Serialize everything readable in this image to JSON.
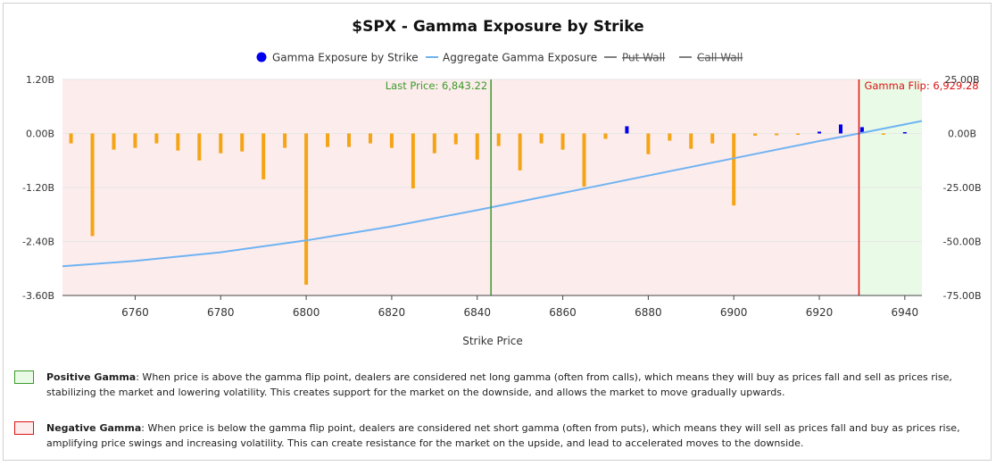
{
  "chart_data": {
    "type": "bar",
    "title": "$SPX - Gamma Exposure by Strike",
    "xlabel": "Strike Price",
    "ylabel_left": "",
    "ylabel_right": "",
    "xlim": [
      6743,
      6944
    ],
    "ylim_left": [
      -3.6,
      1.2
    ],
    "ylim_right": [
      -75,
      25
    ],
    "x_ticks": [
      6760,
      6780,
      6800,
      6820,
      6840,
      6860,
      6880,
      6900,
      6920,
      6940
    ],
    "y_ticks_left": [
      "1.20B",
      "0.00B",
      "-1.20B",
      "-2.40B",
      "-3.60B"
    ],
    "y_ticks_left_values": [
      1.2,
      0,
      -1.2,
      -2.4,
      -3.6
    ],
    "y_ticks_right": [
      "25.00B",
      "0.00B",
      "-25.00B",
      "-50.00B",
      "-75.00B"
    ],
    "y_ticks_right_values": [
      25,
      0,
      -25,
      -50,
      -75
    ],
    "legend": {
      "position": "top-center",
      "items": [
        {
          "label": "Gamma Exposure by Strike",
          "marker": "circle",
          "color": "#0000ee",
          "active": true
        },
        {
          "label": "Aggregate Gamma Exposure",
          "marker": "line",
          "color": "#6fb3f2",
          "active": true
        },
        {
          "label": "Put Wall",
          "marker": "line",
          "color": "#555555",
          "active": false
        },
        {
          "label": "Call Wall",
          "marker": "line",
          "color": "#555555",
          "active": false
        }
      ]
    },
    "series": [
      {
        "name": "Gamma Exposure by Strike",
        "axis": "left",
        "unit": "B",
        "points": [
          {
            "x": 6745,
            "y": -0.22
          },
          {
            "x": 6750,
            "y": -2.28
          },
          {
            "x": 6755,
            "y": -0.36
          },
          {
            "x": 6760,
            "y": -0.32
          },
          {
            "x": 6765,
            "y": -0.22
          },
          {
            "x": 6770,
            "y": -0.38
          },
          {
            "x": 6775,
            "y": -0.6
          },
          {
            "x": 6780,
            "y": -0.44
          },
          {
            "x": 6785,
            "y": -0.4
          },
          {
            "x": 6790,
            "y": -1.02
          },
          {
            "x": 6795,
            "y": -0.32
          },
          {
            "x": 6800,
            "y": -3.36
          },
          {
            "x": 6805,
            "y": -0.3
          },
          {
            "x": 6810,
            "y": -0.3
          },
          {
            "x": 6815,
            "y": -0.22
          },
          {
            "x": 6820,
            "y": -0.32
          },
          {
            "x": 6825,
            "y": -1.22
          },
          {
            "x": 6830,
            "y": -0.44
          },
          {
            "x": 6835,
            "y": -0.24
          },
          {
            "x": 6840,
            "y": -0.58
          },
          {
            "x": 6845,
            "y": -0.28
          },
          {
            "x": 6850,
            "y": -0.82
          },
          {
            "x": 6855,
            "y": -0.22
          },
          {
            "x": 6860,
            "y": -0.36
          },
          {
            "x": 6865,
            "y": -1.18
          },
          {
            "x": 6870,
            "y": -0.12
          },
          {
            "x": 6875,
            "y": 0.16
          },
          {
            "x": 6880,
            "y": -0.46
          },
          {
            "x": 6885,
            "y": -0.16
          },
          {
            "x": 6890,
            "y": -0.34
          },
          {
            "x": 6895,
            "y": -0.22
          },
          {
            "x": 6900,
            "y": -1.6
          },
          {
            "x": 6905,
            "y": -0.05
          },
          {
            "x": 6910,
            "y": -0.04
          },
          {
            "x": 6915,
            "y": -0.03
          },
          {
            "x": 6920,
            "y": 0.04
          },
          {
            "x": 6925,
            "y": 0.2
          },
          {
            "x": 6930,
            "y": 0.14
          },
          {
            "x": 6935,
            "y": -0.03
          },
          {
            "x": 6940,
            "y": 0.03
          }
        ],
        "positive_color": "#0000ee",
        "negative_color": "#f5a416"
      },
      {
        "name": "Aggregate Gamma Exposure",
        "axis": "right",
        "unit": "B",
        "color": "#6fb3f2",
        "points": [
          {
            "x": 6743,
            "y": -61.5
          },
          {
            "x": 6760,
            "y": -59.0
          },
          {
            "x": 6780,
            "y": -55.0
          },
          {
            "x": 6800,
            "y": -49.5
          },
          {
            "x": 6820,
            "y": -43.0
          },
          {
            "x": 6840,
            "y": -35.5
          },
          {
            "x": 6860,
            "y": -27.5
          },
          {
            "x": 6880,
            "y": -19.5
          },
          {
            "x": 6900,
            "y": -11.5
          },
          {
            "x": 6920,
            "y": -3.5
          },
          {
            "x": 6929.28,
            "y": 0
          },
          {
            "x": 6944,
            "y": 5.8
          }
        ]
      }
    ],
    "annotations": [
      {
        "label": "Last Price: 6,843.22",
        "x": 6843.22,
        "color": "#3a9a2a"
      },
      {
        "label": "Gamma Flip: 6,929.28",
        "x": 6929.28,
        "color": "#dd1111"
      }
    ],
    "regions": [
      {
        "name": "negative-gamma-region",
        "from": 6743,
        "to": 6929.28,
        "color": "#fdecec"
      },
      {
        "name": "positive-gamma-region",
        "from": 6929.28,
        "to": 6944,
        "color": "#e9fbe7"
      }
    ],
    "grid": {
      "horizontal": true,
      "vertical": false
    }
  },
  "notes": {
    "positive": {
      "heading": "Positive Gamma",
      "text": ": When price is above the gamma flip point, dealers are considered net long gamma (often from calls), which means they will buy as prices fall and sell as prices rise, stabilizing the market and lowering volatility. This creates support for the market on the downside, and allows the market to move gradually upwards.",
      "swatch_color": "#e9fbe7",
      "swatch_border": "#3a9a2a"
    },
    "negative": {
      "heading": "Negative Gamma",
      "text": ": When price is below the gamma flip point, dealers are considered net short gamma (often from puts), which means they will sell as prices fall and buy as prices rise, amplifying price swings and increasing volatility. This can create resistance for the market on the upside, and lead to accelerated moves to the downside.",
      "swatch_color": "#fdecec",
      "swatch_border": "#dd1111"
    }
  }
}
